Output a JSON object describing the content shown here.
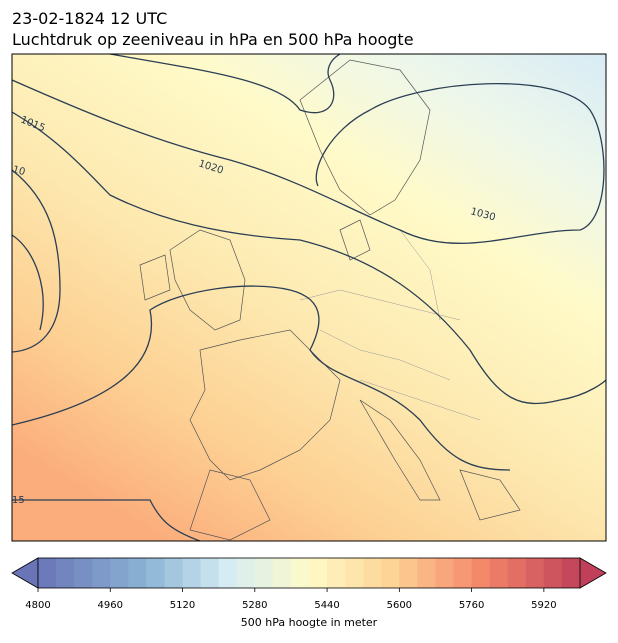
{
  "title": {
    "line1": "23-02-1824 12 UTC",
    "line2": "Luchtdruk op zeeniveau in hPa en 500 hPa hoogte"
  },
  "contour_labels": [
    "1015",
    "1020",
    "1030",
    "10",
    "15"
  ],
  "colorbar": {
    "lim": [
      4800,
      6000
    ],
    "ticks": [
      4800,
      4960,
      5120,
      5280,
      5440,
      5600,
      5760,
      5920
    ],
    "label": "500 hPa hoogte in meter"
  }
}
